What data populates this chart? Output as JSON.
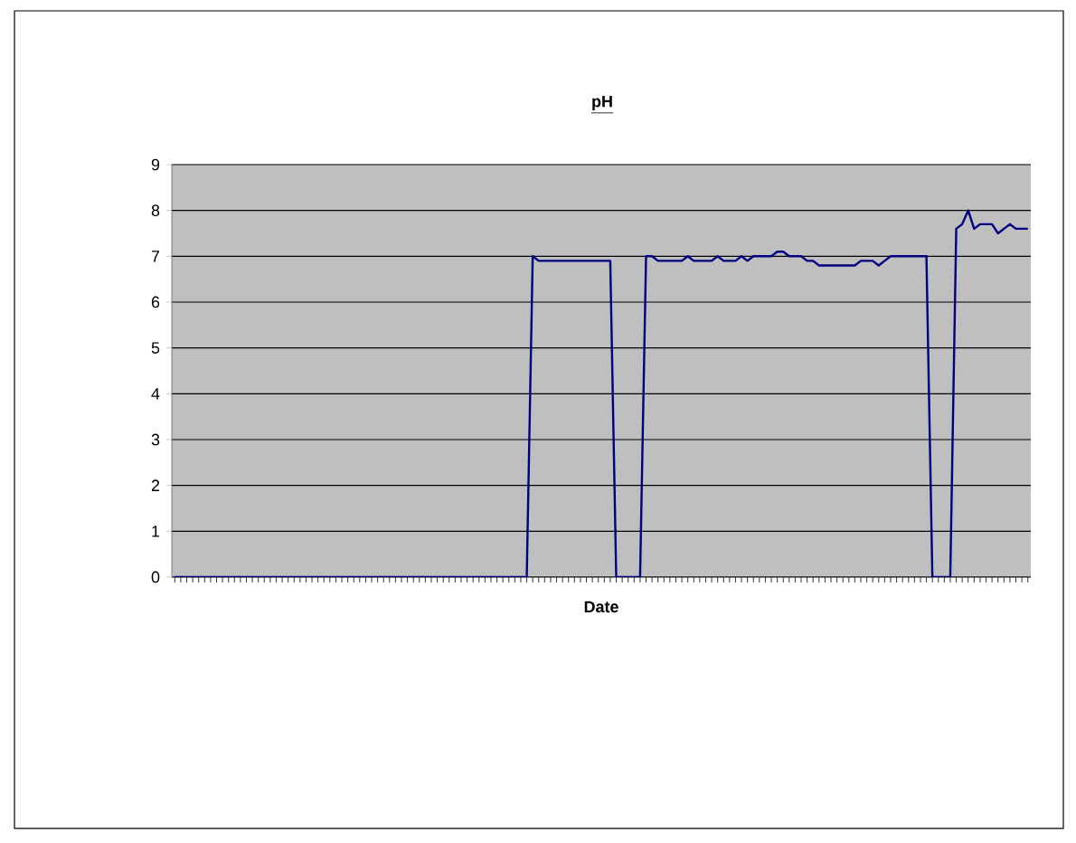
{
  "chart_data": {
    "type": "line",
    "title": "pH",
    "xlabel": "Date",
    "categories": [
      null,
      null,
      null,
      null,
      null,
      null,
      null,
      null,
      null,
      null,
      null,
      null,
      null,
      null,
      null,
      null,
      null,
      null,
      null,
      null,
      null,
      null,
      null,
      null,
      null,
      null,
      null,
      null,
      null,
      null,
      null,
      null,
      null,
      null,
      null,
      null,
      null,
      null,
      null,
      null,
      null,
      null,
      null,
      null,
      null,
      null,
      null,
      null,
      null,
      null,
      null,
      null,
      null,
      null,
      null,
      null,
      null,
      null,
      null,
      null,
      null,
      null,
      null,
      null,
      null,
      null,
      null,
      null,
      null,
      null,
      null,
      null,
      null,
      null,
      null,
      null,
      null,
      null,
      null,
      null,
      null,
      null,
      null,
      null,
      null,
      null,
      null,
      null,
      null,
      null,
      null,
      null,
      null,
      null,
      null,
      null,
      null,
      null,
      null,
      null,
      null,
      null,
      null,
      null,
      null,
      null,
      null,
      null,
      null,
      null,
      null,
      null,
      null,
      null,
      null,
      null,
      null,
      null,
      null,
      null,
      null,
      null,
      null,
      null,
      null,
      null,
      null,
      null,
      null,
      null,
      null,
      null,
      null,
      null,
      null,
      null,
      null,
      null,
      null,
      null,
      null,
      null,
      null,
      null
    ],
    "series": [
      {
        "color": "#000080",
        "values": [
          0,
          0,
          0,
          0,
          0,
          0,
          0,
          0,
          0,
          0,
          0,
          0,
          0,
          0,
          0,
          0,
          0,
          0,
          0,
          0,
          0,
          0,
          0,
          0,
          0,
          0,
          0,
          0,
          0,
          0,
          0,
          0,
          0,
          0,
          0,
          0,
          0,
          0,
          0,
          0,
          0,
          0,
          0,
          0,
          0,
          0,
          0,
          0,
          0,
          0,
          0,
          0,
          0,
          0,
          0,
          0,
          0,
          0,
          0,
          0,
          7.0,
          6.9,
          6.9,
          6.9,
          6.9,
          6.9,
          6.9,
          6.9,
          6.9,
          6.9,
          6.9,
          6.9,
          6.9,
          6.9,
          0,
          0,
          0,
          0,
          0,
          7.0,
          7.0,
          6.9,
          6.9,
          6.9,
          6.9,
          6.9,
          7.0,
          6.9,
          6.9,
          6.9,
          6.9,
          7.0,
          6.9,
          6.9,
          6.9,
          7.0,
          6.9,
          7.0,
          7.0,
          7.0,
          7.0,
          7.1,
          7.1,
          7.0,
          7.0,
          7.0,
          6.9,
          6.9,
          6.8,
          6.8,
          6.8,
          6.8,
          6.8,
          6.8,
          6.8,
          6.9,
          6.9,
          6.9,
          6.8,
          6.9,
          7.0,
          7.0,
          7.0,
          7.0,
          7.0,
          7.0,
          7.0,
          0,
          0,
          0,
          0,
          7.6,
          7.7,
          8.0,
          7.6,
          7.7,
          7.7,
          7.7,
          7.5,
          7.6,
          7.7,
          7.6,
          7.6,
          7.6
        ]
      }
    ],
    "ylim": [
      0,
      9
    ],
    "yticks": [
      0,
      1,
      2,
      3,
      4,
      5,
      6,
      7,
      8,
      9
    ],
    "grid": "y",
    "marker": "none",
    "line_style": "solid",
    "legend": false,
    "tick_labels": "y"
  }
}
